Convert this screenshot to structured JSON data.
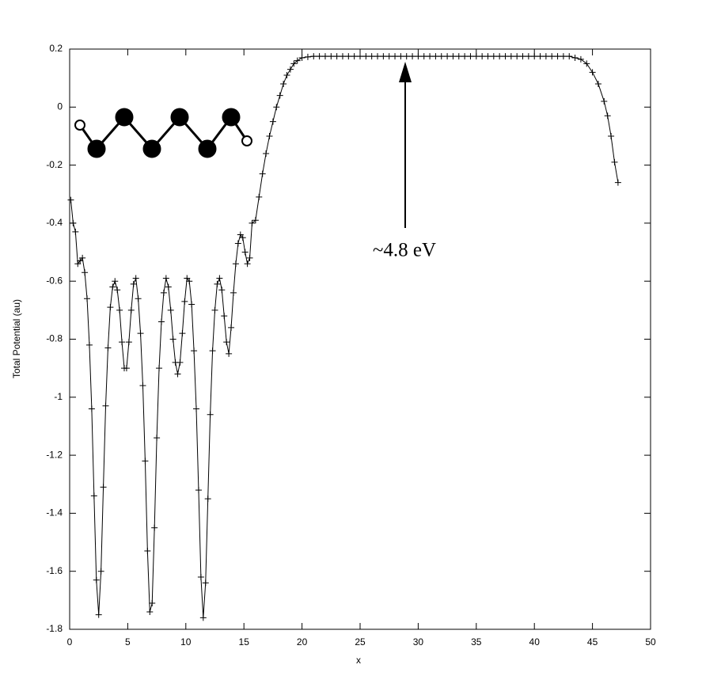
{
  "chart_data": {
    "type": "line",
    "x_label": "x",
    "y_label": "Total Potential (au)",
    "annotation": "~4.8 eV",
    "x": [
      0.1,
      0.3,
      0.5,
      0.7,
      0.9,
      1.1,
      1.3,
      1.5,
      1.7,
      1.9,
      2.1,
      2.3,
      2.5,
      2.7,
      2.9,
      3.1,
      3.3,
      3.5,
      3.7,
      3.9,
      4.1,
      4.3,
      4.5,
      4.7,
      4.9,
      5.1,
      5.3,
      5.5,
      5.7,
      5.9,
      6.1,
      6.3,
      6.5,
      6.7,
      6.9,
      7.1,
      7.3,
      7.5,
      7.7,
      7.9,
      8.1,
      8.3,
      8.5,
      8.7,
      8.9,
      9.1,
      9.3,
      9.5,
      9.7,
      9.9,
      10.1,
      10.3,
      10.5,
      10.7,
      10.9,
      11.1,
      11.3,
      11.5,
      11.7,
      11.9,
      12.1,
      12.3,
      12.5,
      12.7,
      12.9,
      13.1,
      13.3,
      13.5,
      13.7,
      13.9,
      14.1,
      14.3,
      14.5,
      14.7,
      14.9,
      15.1,
      15.3,
      15.5,
      15.7,
      16.0,
      16.3,
      16.6,
      16.9,
      17.2,
      17.5,
      17.8,
      18.1,
      18.4,
      18.7,
      19.0,
      19.3,
      19.6,
      20.0,
      20.5,
      21,
      21.5,
      22,
      22.5,
      23,
      23.5,
      24,
      24.5,
      25,
      25.5,
      26,
      26.5,
      27,
      27.5,
      28,
      28.5,
      29,
      29.5,
      30,
      30.5,
      31,
      31.5,
      32,
      32.5,
      33,
      33.5,
      34,
      34.5,
      35,
      35.5,
      36,
      36.5,
      37,
      37.5,
      38,
      38.5,
      39,
      39.5,
      40,
      40.5,
      41,
      41.5,
      42,
      42.5,
      43,
      43.5,
      44,
      44.5,
      45,
      45.5,
      46,
      46.3,
      46.6,
      46.9,
      47.2
    ],
    "values": [
      -0.32,
      -0.4,
      -0.43,
      -0.54,
      -0.53,
      -0.52,
      -0.57,
      -0.66,
      -0.82,
      -1.04,
      -1.34,
      -1.63,
      -1.75,
      -1.6,
      -1.31,
      -1.03,
      -0.83,
      -0.69,
      -0.62,
      -0.6,
      -0.63,
      -0.7,
      -0.81,
      -0.9,
      -0.9,
      -0.81,
      -0.7,
      -0.61,
      -0.59,
      -0.66,
      -0.78,
      -0.96,
      -1.22,
      -1.53,
      -1.74,
      -1.71,
      -1.45,
      -1.14,
      -0.9,
      -0.74,
      -0.64,
      -0.59,
      -0.62,
      -0.7,
      -0.8,
      -0.88,
      -0.92,
      -0.88,
      -0.78,
      -0.67,
      -0.59,
      -0.6,
      -0.68,
      -0.84,
      -1.04,
      -1.32,
      -1.62,
      -1.76,
      -1.64,
      -1.35,
      -1.06,
      -0.84,
      -0.7,
      -0.61,
      -0.59,
      -0.63,
      -0.72,
      -0.81,
      -0.85,
      -0.76,
      -0.64,
      -0.54,
      -0.47,
      -0.44,
      -0.45,
      -0.5,
      -0.54,
      -0.52,
      -0.4,
      -0.39,
      -0.31,
      -0.23,
      -0.16,
      -0.1,
      -0.05,
      0.0,
      0.04,
      0.08,
      0.11,
      0.13,
      0.15,
      0.16,
      0.17,
      0.173,
      0.175,
      0.175,
      0.175,
      0.175,
      0.175,
      0.175,
      0.175,
      0.175,
      0.175,
      0.175,
      0.175,
      0.175,
      0.175,
      0.175,
      0.175,
      0.175,
      0.175,
      0.175,
      0.175,
      0.175,
      0.175,
      0.175,
      0.175,
      0.175,
      0.175,
      0.175,
      0.175,
      0.175,
      0.175,
      0.175,
      0.175,
      0.175,
      0.175,
      0.175,
      0.175,
      0.175,
      0.175,
      0.175,
      0.175,
      0.175,
      0.175,
      0.175,
      0.175,
      0.175,
      0.175,
      0.17,
      0.165,
      0.15,
      0.12,
      0.08,
      0.02,
      -0.03,
      -0.1,
      -0.19,
      -0.26
    ],
    "color": "#000000",
    "xlim": [
      0,
      50
    ],
    "xticks": [
      0,
      5,
      10,
      15,
      20,
      25,
      30,
      35,
      40,
      45,
      50
    ],
    "ylim": [
      -1.8,
      0.2
    ],
    "yticks": [
      -1.8,
      -1.6,
      -1.4,
      -1.2,
      -1,
      -0.8,
      -0.6,
      -0.4,
      -0.2,
      0,
      0.2
    ]
  }
}
